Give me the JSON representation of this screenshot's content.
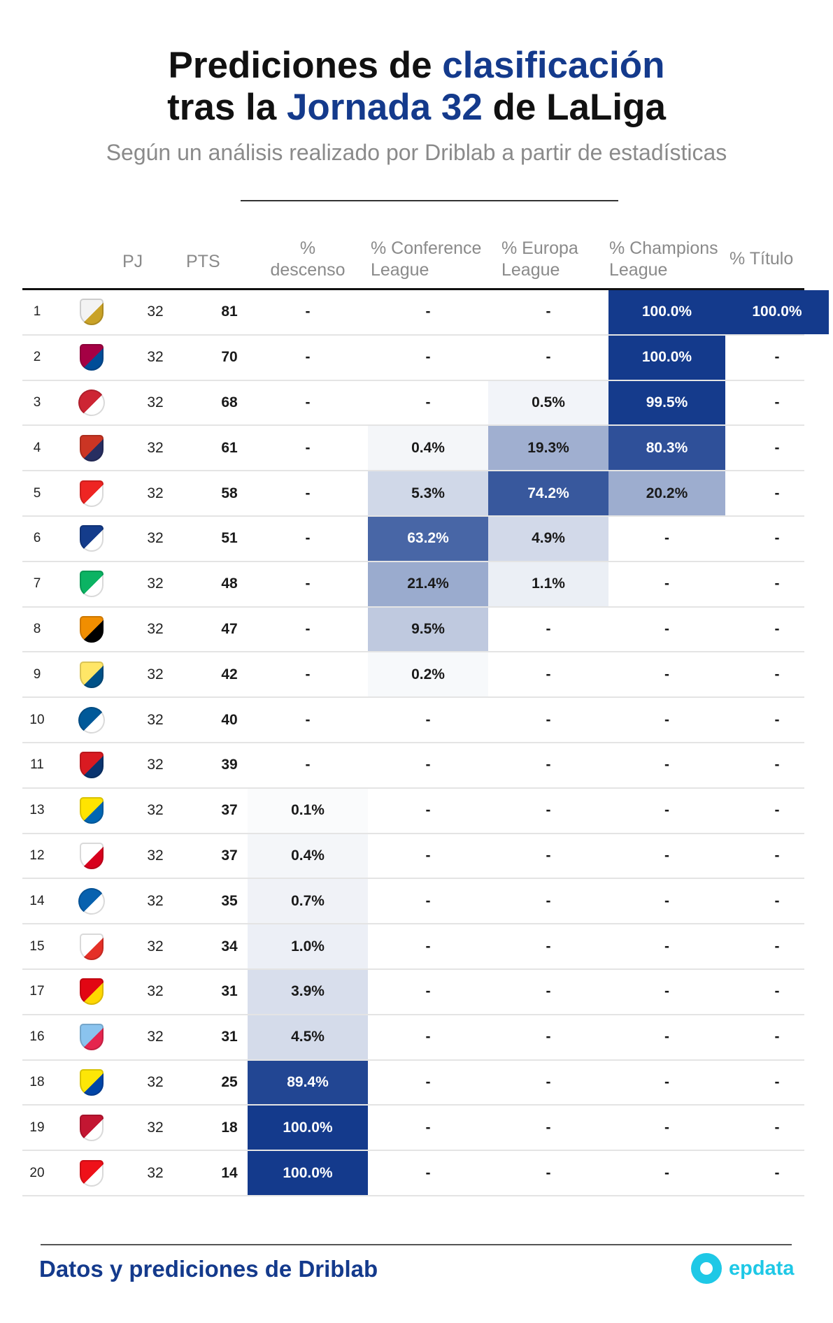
{
  "title": {
    "line1_a": "Prediciones de ",
    "line1_b": "clasificación",
    "line2_a": "tras la ",
    "line2_b": "Jornada 32",
    "line2_c": " de LaLiga"
  },
  "subtitle": "Según un análisis realizado por Driblab a partir de estadísticas",
  "headers": {
    "pj": "PJ",
    "pts": "PTS",
    "desc_1": "%",
    "desc_2": "descenso",
    "conf_1": "% Conference",
    "conf_2": "League",
    "euro_1": "% Europa",
    "euro_2": "League",
    "champ_1": "% Champions",
    "champ_2": "League",
    "titulo": "% Título"
  },
  "footer": {
    "source": "Datos y prediciones de Driblab",
    "brand": "epdata"
  },
  "colors": {
    "accent": "#143a8c",
    "brand": "#1ec8e6"
  },
  "chart_data": {
    "type": "table",
    "columns": [
      "",
      "",
      "PJ",
      "PTS",
      "% descenso",
      "% Conference League",
      "% Europa League",
      "% Champions League",
      "% Título"
    ],
    "rows": [
      {
        "rank": "1",
        "crest": "real-madrid-crest",
        "pj": "32",
        "pts": "81",
        "desc": "-",
        "conf": "-",
        "euro": "-",
        "champ": "100.0%",
        "tit": "100.0%"
      },
      {
        "rank": "2",
        "crest": "barcelona-crest",
        "pj": "32",
        "pts": "70",
        "desc": "-",
        "conf": "-",
        "euro": "-",
        "champ": "100.0%",
        "tit": "-"
      },
      {
        "rank": "3",
        "crest": "girona-crest",
        "pj": "32",
        "pts": "68",
        "desc": "-",
        "conf": "-",
        "euro": "0.5%",
        "champ": "99.5%",
        "tit": "-"
      },
      {
        "rank": "4",
        "crest": "atletico-madrid-crest",
        "pj": "32",
        "pts": "61",
        "desc": "-",
        "conf": "0.4%",
        "euro": "19.3%",
        "champ": "80.3%",
        "tit": "-"
      },
      {
        "rank": "5",
        "crest": "athletic-club-crest",
        "pj": "32",
        "pts": "58",
        "desc": "-",
        "conf": "5.3%",
        "euro": "74.2%",
        "champ": "20.2%",
        "tit": "-"
      },
      {
        "rank": "6",
        "crest": "real-sociedad-crest",
        "pj": "32",
        "pts": "51",
        "desc": "-",
        "conf": "63.2%",
        "euro": "4.9%",
        "champ": "-",
        "tit": "-"
      },
      {
        "rank": "7",
        "crest": "real-betis-crest",
        "pj": "32",
        "pts": "48",
        "desc": "-",
        "conf": "21.4%",
        "euro": "1.1%",
        "champ": "-",
        "tit": "-"
      },
      {
        "rank": "8",
        "crest": "valencia-crest",
        "pj": "32",
        "pts": "47",
        "desc": "-",
        "conf": "9.5%",
        "euro": "-",
        "champ": "-",
        "tit": "-"
      },
      {
        "rank": "9",
        "crest": "villarreal-crest",
        "pj": "32",
        "pts": "42",
        "desc": "-",
        "conf": "0.2%",
        "euro": "-",
        "champ": "-",
        "tit": "-"
      },
      {
        "rank": "10",
        "crest": "getafe-crest",
        "pj": "32",
        "pts": "40",
        "desc": "-",
        "conf": "-",
        "euro": "-",
        "champ": "-",
        "tit": "-"
      },
      {
        "rank": "11",
        "crest": "osasuna-crest",
        "pj": "32",
        "pts": "39",
        "desc": "-",
        "conf": "-",
        "euro": "-",
        "champ": "-",
        "tit": "-"
      },
      {
        "rank": "13",
        "crest": "las-palmas-crest",
        "pj": "32",
        "pts": "37",
        "desc": "0.1%",
        "conf": "-",
        "euro": "-",
        "champ": "-",
        "tit": "-"
      },
      {
        "rank": "12",
        "crest": "sevilla-crest",
        "pj": "32",
        "pts": "37",
        "desc": "0.4%",
        "conf": "-",
        "euro": "-",
        "champ": "-",
        "tit": "-"
      },
      {
        "rank": "14",
        "crest": "alaves-crest",
        "pj": "32",
        "pts": "35",
        "desc": "0.7%",
        "conf": "-",
        "euro": "-",
        "champ": "-",
        "tit": "-"
      },
      {
        "rank": "15",
        "crest": "rayo-vallecano-crest",
        "pj": "32",
        "pts": "34",
        "desc": "1.0%",
        "conf": "-",
        "euro": "-",
        "champ": "-",
        "tit": "-"
      },
      {
        "rank": "17",
        "crest": "mallorca-crest",
        "pj": "32",
        "pts": "31",
        "desc": "3.9%",
        "conf": "-",
        "euro": "-",
        "champ": "-",
        "tit": "-"
      },
      {
        "rank": "16",
        "crest": "celta-crest",
        "pj": "32",
        "pts": "31",
        "desc": "4.5%",
        "conf": "-",
        "euro": "-",
        "champ": "-",
        "tit": "-"
      },
      {
        "rank": "18",
        "crest": "cadiz-crest",
        "pj": "32",
        "pts": "25",
        "desc": "89.4%",
        "conf": "-",
        "euro": "-",
        "champ": "-",
        "tit": "-"
      },
      {
        "rank": "19",
        "crest": "granada-crest",
        "pj": "32",
        "pts": "18",
        "desc": "100.0%",
        "conf": "-",
        "euro": "-",
        "champ": "-",
        "tit": "-"
      },
      {
        "rank": "20",
        "crest": "almeria-crest",
        "pj": "32",
        "pts": "14",
        "desc": "100.0%",
        "conf": "-",
        "euro": "-",
        "champ": "-",
        "tit": "-"
      }
    ]
  },
  "crest_colors": {
    "real-madrid-crest": [
      "#f3f3f3",
      "#c9a227"
    ],
    "barcelona-crest": [
      "#a50044",
      "#004d98"
    ],
    "girona-crest": [
      "#cd2534",
      "#ffffff"
    ],
    "atletico-madrid-crest": [
      "#cb3524",
      "#272e61"
    ],
    "athletic-club-crest": [
      "#ee2523",
      "#ffffff"
    ],
    "real-sociedad-crest": [
      "#143c8b",
      "#ffffff"
    ],
    "real-betis-crest": [
      "#0bb363",
      "#ffffff"
    ],
    "valencia-crest": [
      "#f18e00",
      "#000000"
    ],
    "villarreal-crest": [
      "#ffe667",
      "#005187"
    ],
    "getafe-crest": [
      "#005999",
      "#ffffff"
    ],
    "osasuna-crest": [
      "#d91a21",
      "#0a346f"
    ],
    "las-palmas-crest": [
      "#ffe400",
      "#0066b3"
    ],
    "sevilla-crest": [
      "#ffffff",
      "#d8001d"
    ],
    "alaves-crest": [
      "#0761af",
      "#ffffff"
    ],
    "rayo-vallecano-crest": [
      "#ffffff",
      "#e53027"
    ],
    "mallorca-crest": [
      "#e20613",
      "#ffd700"
    ],
    "celta-crest": [
      "#8ac3ee",
      "#e5254e"
    ],
    "cadiz-crest": [
      "#fde607",
      "#0045a7"
    ],
    "granada-crest": [
      "#c31632",
      "#ffffff"
    ],
    "almeria-crest": [
      "#ee1119",
      "#ffffff"
    ]
  }
}
